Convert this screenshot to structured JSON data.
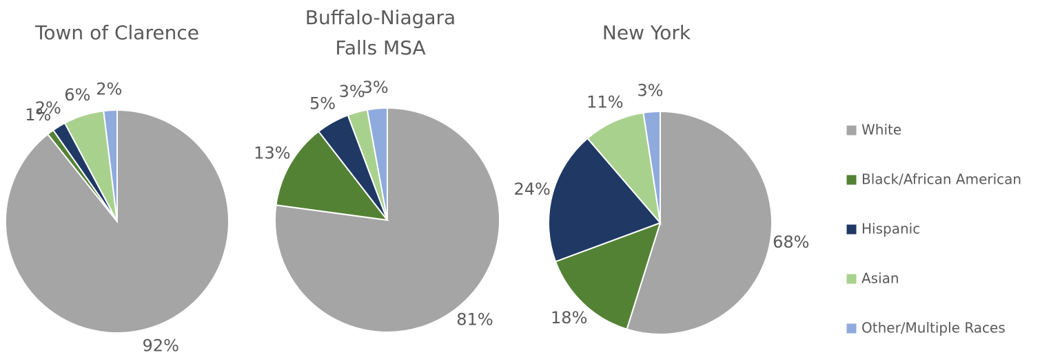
{
  "chart_data": [
    {
      "type": "pie",
      "title": "Town of Clarence",
      "categories": [
        "White",
        "Black/African American",
        "Hispanic",
        "Asian",
        "Other/Multiple Races"
      ],
      "values": [
        92,
        1,
        2,
        6,
        2
      ],
      "value_labels": [
        "92%",
        "1%",
        "2%",
        "6%",
        "2%"
      ],
      "colors": [
        "#a5a5a5",
        "#548235",
        "#1f3864",
        "#a9d18e",
        "#8faadc"
      ]
    },
    {
      "type": "pie",
      "title": "Buffalo-Niagara Falls MSA",
      "categories": [
        "White",
        "Black/African American",
        "Hispanic",
        "Asian",
        "Other/Multiple Races"
      ],
      "values": [
        81,
        13,
        5,
        3,
        3
      ],
      "value_labels": [
        "81%",
        "13%",
        "5%",
        "3%",
        "3%"
      ],
      "colors": [
        "#a5a5a5",
        "#548235",
        "#1f3864",
        "#a9d18e",
        "#8faadc"
      ]
    },
    {
      "type": "pie",
      "title": "New York",
      "categories": [
        "White",
        "Black/African American",
        "Hispanic",
        "Asian",
        "Other/Multiple Races"
      ],
      "values": [
        68,
        18,
        24,
        11,
        3
      ],
      "value_labels": [
        "68%",
        "18%",
        "24%",
        "11%",
        "3%"
      ],
      "colors": [
        "#a5a5a5",
        "#548235",
        "#1f3864",
        "#a9d18e",
        "#8faadc"
      ]
    }
  ]
}
